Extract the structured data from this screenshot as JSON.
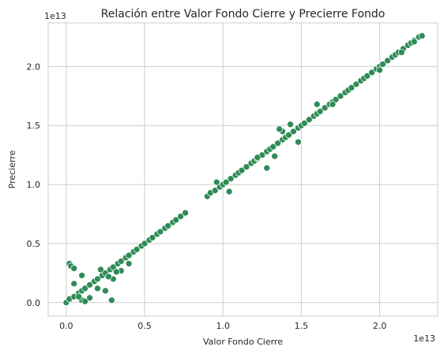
{
  "chart_data": {
    "type": "scatter",
    "title": "Relación entre Valor Fondo Cierre y Precierre Fondo",
    "xlabel": "Valor Fondo Cierre",
    "ylabel": "Precierre",
    "x_offset_text": "1e13",
    "y_offset_text": "1e13",
    "xlim": [
      -0.115,
      2.37
    ],
    "ylim": [
      -0.115,
      2.37
    ],
    "x_ticks": [
      0.0,
      0.5,
      1.0,
      1.5,
      2.0
    ],
    "x_tick_labels": [
      "0.0",
      "0.5",
      "1.0",
      "1.5",
      "2.0"
    ],
    "y_ticks": [
      0.0,
      0.5,
      1.0,
      1.5,
      2.0
    ],
    "y_tick_labels": [
      "0.0",
      "0.5",
      "1.0",
      "1.5",
      "2.0"
    ],
    "grid": true,
    "point_color": "#2e8b57",
    "series": [
      {
        "x": [
          0.0,
          0.02,
          0.05,
          0.08,
          0.1,
          0.12,
          0.15,
          0.18,
          0.2,
          0.23,
          0.25,
          0.28,
          0.3,
          0.33,
          0.35,
          0.38,
          0.4,
          0.43,
          0.45,
          0.48,
          0.5,
          0.53,
          0.55,
          0.58,
          0.6,
          0.63,
          0.65,
          0.68,
          0.7,
          0.73,
          0.76,
          0.02,
          0.03,
          0.05,
          0.1,
          0.1,
          0.15,
          0.25,
          0.29,
          0.05,
          0.08,
          0.12,
          0.2,
          0.22,
          0.3,
          0.35,
          0.4,
          0.27,
          0.32,
          0.9,
          0.92,
          0.95,
          0.98,
          1.0,
          1.02,
          1.05,
          1.08,
          1.1,
          1.12,
          1.15,
          1.18,
          1.2,
          1.22,
          1.25,
          1.28,
          1.3,
          1.32,
          1.35,
          1.38,
          1.4,
          1.42,
          1.45,
          1.48,
          1.5,
          1.52,
          1.55,
          1.58,
          1.6,
          1.62,
          1.65,
          1.68,
          1.7,
          1.72,
          1.75,
          1.78,
          1.8,
          1.82,
          1.85,
          1.88,
          1.9,
          1.92,
          1.95,
          1.98,
          2.0,
          2.02,
          2.05,
          2.08,
          2.1,
          2.12,
          2.15,
          2.18,
          2.2,
          2.22,
          2.25,
          2.27,
          1.04,
          1.28,
          1.33,
          1.38,
          1.43,
          1.48,
          0.96,
          1.6,
          1.7,
          2.0,
          2.14,
          2.22,
          1.22,
          1.36
        ],
        "y": [
          0.0,
          0.03,
          0.05,
          0.08,
          0.1,
          0.12,
          0.15,
          0.18,
          0.2,
          0.23,
          0.25,
          0.28,
          0.3,
          0.33,
          0.35,
          0.38,
          0.4,
          0.43,
          0.45,
          0.48,
          0.5,
          0.53,
          0.55,
          0.58,
          0.6,
          0.63,
          0.65,
          0.68,
          0.7,
          0.73,
          0.76,
          0.33,
          0.31,
          0.29,
          0.23,
          0.02,
          0.04,
          0.1,
          0.02,
          0.16,
          0.05,
          0.01,
          0.12,
          0.28,
          0.2,
          0.27,
          0.33,
          0.22,
          0.26,
          0.9,
          0.93,
          0.95,
          0.98,
          1.0,
          1.02,
          1.05,
          1.08,
          1.1,
          1.12,
          1.15,
          1.18,
          1.2,
          1.22,
          1.25,
          1.28,
          1.3,
          1.32,
          1.35,
          1.38,
          1.4,
          1.42,
          1.45,
          1.48,
          1.5,
          1.52,
          1.55,
          1.58,
          1.6,
          1.62,
          1.65,
          1.68,
          1.7,
          1.72,
          1.75,
          1.78,
          1.8,
          1.82,
          1.85,
          1.88,
          1.9,
          1.92,
          1.95,
          1.98,
          2.0,
          2.02,
          2.05,
          2.08,
          2.1,
          2.12,
          2.15,
          2.18,
          2.2,
          2.22,
          2.25,
          2.26,
          0.94,
          1.14,
          1.24,
          1.45,
          1.51,
          1.36,
          1.02,
          1.68,
          1.68,
          1.97,
          2.12,
          2.21,
          1.23,
          1.47
        ]
      }
    ]
  }
}
